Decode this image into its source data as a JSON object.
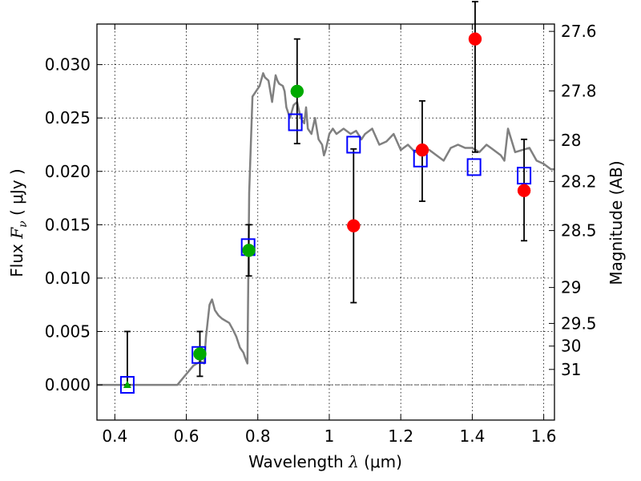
{
  "chart_data": {
    "type": "scatter",
    "xlabel": {
      "prefix": "Wavelength  ",
      "symbol": "λ",
      "unit": " (μm)"
    },
    "ylabel": {
      "prefix": "Flux  ",
      "symbol": "F",
      "subscript": "ν",
      "unit": "  ( μJy )"
    },
    "y2label": "Magnitude (AB)",
    "xlim": [
      0.35,
      1.63
    ],
    "ylim": [
      -0.0033,
      0.0338
    ],
    "grid": true,
    "x_ticks": [
      {
        "value": 0.4,
        "label": "0.4"
      },
      {
        "value": 0.6,
        "label": "0.6"
      },
      {
        "value": 0.8,
        "label": "0.8"
      },
      {
        "value": 1.0,
        "label": "1"
      },
      {
        "value": 1.2,
        "label": "1.2"
      },
      {
        "value": 1.4,
        "label": "1.4"
      },
      {
        "value": 1.6,
        "label": "1.6"
      }
    ],
    "y_ticks": [
      {
        "value": 0.0,
        "label": "0.000"
      },
      {
        "value": 0.005,
        "label": "0.005"
      },
      {
        "value": 0.01,
        "label": "0.010"
      },
      {
        "value": 0.015,
        "label": "0.015"
      },
      {
        "value": 0.02,
        "label": "0.020"
      },
      {
        "value": 0.025,
        "label": "0.025"
      },
      {
        "value": 0.03,
        "label": "0.030"
      }
    ],
    "mag_ticks": [
      {
        "label": "27.6",
        "value": 27.6
      },
      {
        "label": "27.8",
        "value": 27.8
      },
      {
        "label": "28",
        "value": 28.0
      },
      {
        "label": "28.2",
        "value": 28.2
      },
      {
        "label": "28.5",
        "value": 28.5
      },
      {
        "label": "29",
        "value": 29.0
      },
      {
        "label": "29.5",
        "value": 29.5
      },
      {
        "label": "30",
        "value": 30.0
      },
      {
        "label": "31",
        "value": 31.0
      }
    ],
    "model_spectrum": {
      "color": "#808080",
      "x": [
        0.35,
        0.4,
        0.45,
        0.5,
        0.55,
        0.575,
        0.6,
        0.62,
        0.63,
        0.64,
        0.65,
        0.655,
        0.665,
        0.672,
        0.68,
        0.69,
        0.7,
        0.71,
        0.72,
        0.73,
        0.74,
        0.75,
        0.76,
        0.765,
        0.771,
        0.776,
        0.785,
        0.795,
        0.805,
        0.815,
        0.82,
        0.83,
        0.84,
        0.85,
        0.855,
        0.86,
        0.87,
        0.875,
        0.88,
        0.89,
        0.9,
        0.91,
        0.92,
        0.93,
        0.935,
        0.94,
        0.95,
        0.96,
        0.97,
        0.98,
        0.985,
        0.99,
        1.0,
        1.01,
        1.02,
        1.04,
        1.06,
        1.075,
        1.09,
        1.1,
        1.12,
        1.14,
        1.16,
        1.18,
        1.2,
        1.22,
        1.24,
        1.26,
        1.28,
        1.3,
        1.32,
        1.34,
        1.36,
        1.38,
        1.4,
        1.42,
        1.44,
        1.46,
        1.48,
        1.49,
        1.5,
        1.52,
        1.54,
        1.56,
        1.58,
        1.6,
        1.62,
        1.63
      ],
      "y": [
        0.0,
        0.0,
        0.0,
        0.0,
        0.0,
        0.0,
        0.001,
        0.0018,
        0.002,
        0.0022,
        0.002,
        0.0045,
        0.0075,
        0.008,
        0.007,
        0.0065,
        0.0062,
        0.006,
        0.0058,
        0.0052,
        0.0045,
        0.0035,
        0.003,
        0.0025,
        0.002,
        0.018,
        0.027,
        0.0275,
        0.028,
        0.0292,
        0.0288,
        0.0285,
        0.0265,
        0.029,
        0.0285,
        0.0282,
        0.028,
        0.0275,
        0.026,
        0.025,
        0.0262,
        0.0265,
        0.025,
        0.0245,
        0.026,
        0.024,
        0.0235,
        0.025,
        0.023,
        0.0225,
        0.0215,
        0.022,
        0.0235,
        0.024,
        0.0235,
        0.024,
        0.0235,
        0.0238,
        0.023,
        0.0235,
        0.024,
        0.0225,
        0.0228,
        0.0235,
        0.022,
        0.0225,
        0.0218,
        0.0222,
        0.022,
        0.0215,
        0.021,
        0.0222,
        0.0225,
        0.0222,
        0.0222,
        0.0218,
        0.0225,
        0.022,
        0.0215,
        0.021,
        0.024,
        0.0218,
        0.022,
        0.0222,
        0.021,
        0.0207,
        0.0202,
        0.0202
      ]
    },
    "series": [
      {
        "marker": "open-square",
        "color": "#0000ff",
        "x": [
          0.435,
          0.635,
          0.773,
          0.905,
          1.068,
          1.255,
          1.405,
          1.545
        ],
        "y": [
          0.0,
          0.0028,
          0.0129,
          0.0246,
          0.0225,
          0.0212,
          0.0204,
          0.0196
        ]
      },
      {
        "marker": "circle",
        "color": "#00aa00",
        "x": [
          0.638,
          0.775,
          0.91
        ],
        "y": [
          0.0029,
          0.0126,
          0.0275
        ],
        "yerr": [
          0.0021,
          0.0024,
          0.0049
        ]
      },
      {
        "marker": "circle",
        "color": "#ff0000",
        "x": [
          1.068,
          1.26,
          1.408,
          1.545
        ],
        "y": [
          0.0149,
          0.022,
          0.0324,
          0.0182
        ],
        "yerr_low": [
          0.0072,
          0.0048,
          0.0106,
          0.0047
        ],
        "yerr_high": [
          0.0072,
          0.0046,
          0.0035,
          0.0048
        ]
      },
      {
        "marker": "triangle",
        "color": "#00aa00",
        "x": [
          0.435
        ],
        "y": [
          0.0
        ],
        "yerr_low": [
          0.0
        ],
        "yerr_high": [
          0.005
        ]
      }
    ]
  }
}
